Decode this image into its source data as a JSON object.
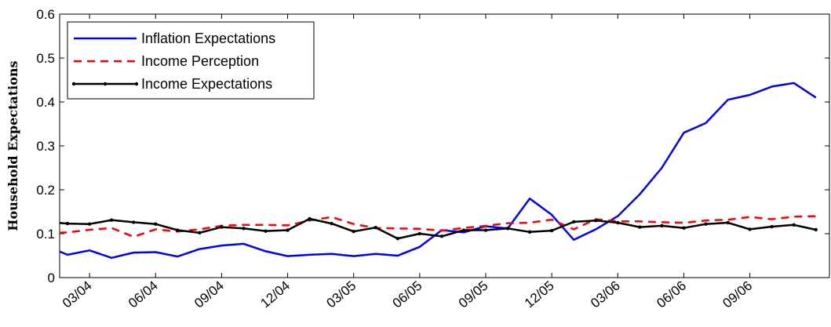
{
  "chart_data": {
    "type": "line",
    "ylabel": "Household Expectations",
    "xlabel": "",
    "ylim": [
      0,
      0.6
    ],
    "yticks": [
      "0",
      "0.1",
      "0.2",
      "0.3",
      "0.4",
      "0.5",
      "0.6"
    ],
    "xtick_labels": [
      "03/04",
      "06/04",
      "09/04",
      "12/04",
      "03/05",
      "06/05",
      "09/05",
      "12/05",
      "03/06",
      "06/06",
      "09/06"
    ],
    "x": [
      "01/04",
      "02/04",
      "03/04",
      "04/04",
      "05/04",
      "06/04",
      "07/04",
      "08/04",
      "09/04",
      "10/04",
      "11/04",
      "12/04",
      "01/05",
      "02/05",
      "03/05",
      "04/05",
      "05/05",
      "06/05",
      "07/05",
      "08/05",
      "09/05",
      "10/05",
      "11/05",
      "12/05",
      "01/06",
      "02/06",
      "03/06",
      "04/06",
      "05/06",
      "06/06",
      "07/06",
      "08/06",
      "09/06",
      "10/06",
      "11/06",
      "12/06"
    ],
    "legend_position": "top-left",
    "series": [
      {
        "name": "Inflation Expectations",
        "color": "#0000ff",
        "dash": "solid",
        "markers": false,
        "values": [
          0.073,
          0.052,
          0.062,
          0.045,
          0.057,
          0.058,
          0.048,
          0.065,
          0.073,
          0.077,
          0.06,
          0.049,
          0.052,
          0.054,
          0.049,
          0.054,
          0.05,
          0.07,
          0.108,
          0.103,
          0.117,
          0.112,
          0.18,
          0.143,
          0.086,
          0.11,
          0.14,
          0.19,
          0.25,
          0.33,
          0.352,
          0.405,
          0.416,
          0.435,
          0.443,
          0.41
        ]
      },
      {
        "name": "Income Perception",
        "color": "#ff0000",
        "dash": "dashed",
        "markers": false,
        "values": [
          0.101,
          0.103,
          0.109,
          0.113,
          0.093,
          0.11,
          0.105,
          0.11,
          0.118,
          0.12,
          0.12,
          0.119,
          0.13,
          0.138,
          0.122,
          0.113,
          0.112,
          0.111,
          0.107,
          0.113,
          0.118,
          0.124,
          0.125,
          0.132,
          0.11,
          0.133,
          0.128,
          0.128,
          0.126,
          0.125,
          0.13,
          0.132,
          0.138,
          0.133,
          0.139,
          0.14
        ]
      },
      {
        "name": "Income Expectations",
        "color": "#000000",
        "dash": "solid",
        "markers": true,
        "values": [
          0.127,
          0.123,
          0.122,
          0.131,
          0.126,
          0.122,
          0.108,
          0.102,
          0.115,
          0.112,
          0.106,
          0.108,
          0.134,
          0.123,
          0.105,
          0.114,
          0.089,
          0.1,
          0.094,
          0.108,
          0.108,
          0.112,
          0.104,
          0.107,
          0.127,
          0.13,
          0.125,
          0.115,
          0.118,
          0.113,
          0.122,
          0.125,
          0.11,
          0.116,
          0.12,
          0.109
        ]
      }
    ]
  }
}
